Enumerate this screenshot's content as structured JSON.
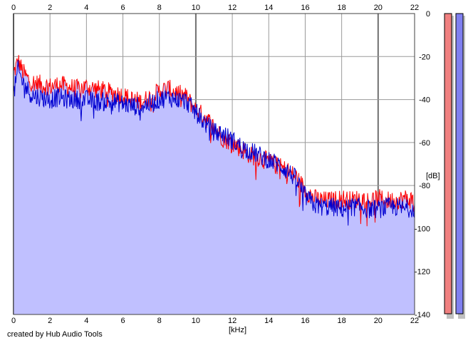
{
  "credit": "created by Hub Audio Tools",
  "colors": {
    "fill": "#c0c0ff",
    "ch1": "#ff0000",
    "ch2": "#0000d0",
    "meter_left": "#f08080",
    "meter_right": "#8080f0"
  },
  "chart_data": {
    "type": "line",
    "xlabel": "[kHz]",
    "ylabel": "[dB]",
    "xlim": [
      0,
      22
    ],
    "ylim": [
      -140,
      0
    ],
    "x_ticks": [
      "0",
      "2",
      "4",
      "6",
      "8",
      "10",
      "12",
      "14",
      "16",
      "18",
      "20",
      "22"
    ],
    "y_ticks": [
      "0",
      "-20",
      "-40",
      "-60",
      "-80",
      "-100",
      "-120",
      "-140"
    ],
    "grid": true,
    "fill_under": true,
    "x": [
      0,
      0.25,
      0.5,
      0.75,
      1,
      1.5,
      2,
      2.5,
      3,
      3.5,
      4,
      4.5,
      5,
      5.5,
      6,
      6.5,
      7,
      7.5,
      8,
      8.5,
      9,
      9.5,
      10,
      10.5,
      11,
      11.5,
      12,
      12.5,
      13,
      13.5,
      14,
      14.5,
      15,
      15.5,
      16,
      16.5,
      17,
      17.5,
      18,
      18.5,
      19,
      19.5,
      20,
      20.5,
      21,
      21.5,
      22
    ],
    "series": [
      {
        "values": [
          -28,
          -22,
          -27,
          -30,
          -32,
          -33,
          -34,
          -33,
          -34,
          -35,
          -34,
          -35,
          -36,
          -37,
          -38,
          -40,
          -41,
          -39,
          -36,
          -35,
          -37,
          -39,
          -45,
          -48,
          -53,
          -58,
          -60,
          -63,
          -66,
          -67,
          -69,
          -71,
          -73,
          -76,
          -82,
          -86,
          -87,
          -87,
          -86,
          -87,
          -86,
          -87,
          -86,
          -87,
          -87,
          -86,
          -87
        ]
      },
      {
        "values": [
          -38,
          -26,
          -32,
          -35,
          -38,
          -39,
          -40,
          -39,
          -40,
          -40,
          -40,
          -41,
          -41,
          -41,
          -42,
          -43,
          -43,
          -42,
          -40,
          -39,
          -40,
          -41,
          -46,
          -51,
          -55,
          -56,
          -59,
          -62,
          -64,
          -66,
          -68,
          -70,
          -73,
          -77,
          -85,
          -89,
          -90,
          -90,
          -91,
          -90,
          -90,
          -91,
          -91,
          -90,
          -90,
          -91,
          -90
        ]
      }
    ]
  }
}
